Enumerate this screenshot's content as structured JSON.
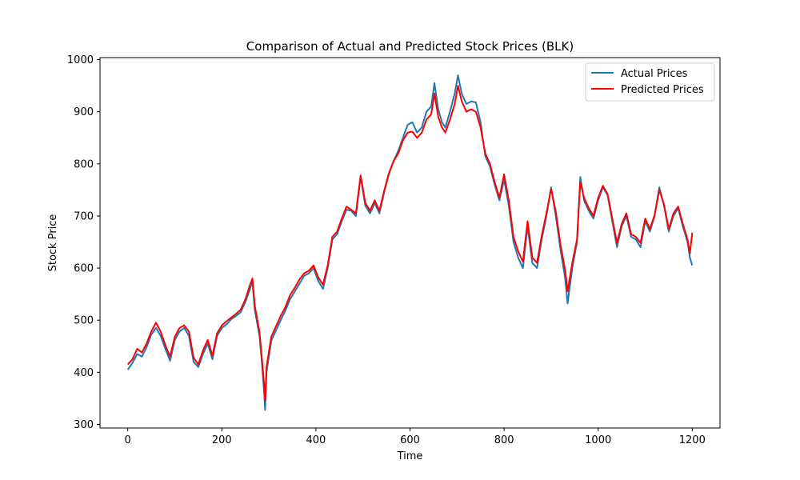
{
  "chart_data": {
    "type": "line",
    "title": "Comparison of Actual and Predicted Stock Prices (BLK)",
    "xlabel": "Time",
    "ylabel": "Stock Price",
    "xlim": [
      -59,
      1259
    ],
    "ylim": [
      293,
      1004
    ],
    "xticks": [
      0,
      200,
      400,
      600,
      800,
      1000,
      1200
    ],
    "yticks": [
      300,
      400,
      500,
      600,
      700,
      800,
      900,
      1000
    ],
    "grid": false,
    "legend_position": "top-right",
    "series": [
      {
        "name": "Actual Prices",
        "color": "#1f77b4",
        "points": [
          [
            0,
            405
          ],
          [
            10,
            418
          ],
          [
            20,
            435
          ],
          [
            30,
            430
          ],
          [
            40,
            448
          ],
          [
            50,
            472
          ],
          [
            60,
            485
          ],
          [
            70,
            470
          ],
          [
            80,
            445
          ],
          [
            90,
            422
          ],
          [
            100,
            462
          ],
          [
            110,
            478
          ],
          [
            120,
            485
          ],
          [
            130,
            470
          ],
          [
            140,
            420
          ],
          [
            150,
            410
          ],
          [
            160,
            435
          ],
          [
            170,
            455
          ],
          [
            180,
            425
          ],
          [
            190,
            470
          ],
          [
            200,
            485
          ],
          [
            210,
            492
          ],
          [
            220,
            502
          ],
          [
            230,
            508
          ],
          [
            240,
            515
          ],
          [
            250,
            535
          ],
          [
            260,
            560
          ],
          [
            265,
            575
          ],
          [
            270,
            520
          ],
          [
            280,
            470
          ],
          [
            285,
            420
          ],
          [
            290,
            360
          ],
          [
            292,
            328
          ],
          [
            295,
            400
          ],
          [
            305,
            460
          ],
          [
            315,
            480
          ],
          [
            325,
            500
          ],
          [
            335,
            518
          ],
          [
            345,
            540
          ],
          [
            355,
            555
          ],
          [
            365,
            570
          ],
          [
            375,
            585
          ],
          [
            385,
            590
          ],
          [
            395,
            600
          ],
          [
            405,
            575
          ],
          [
            415,
            560
          ],
          [
            425,
            600
          ],
          [
            435,
            655
          ],
          [
            445,
            665
          ],
          [
            455,
            690
          ],
          [
            465,
            712
          ],
          [
            475,
            710
          ],
          [
            485,
            700
          ],
          [
            495,
            775
          ],
          [
            505,
            720
          ],
          [
            515,
            705
          ],
          [
            525,
            725
          ],
          [
            535,
            705
          ],
          [
            545,
            745
          ],
          [
            555,
            780
          ],
          [
            565,
            805
          ],
          [
            575,
            825
          ],
          [
            585,
            850
          ],
          [
            595,
            875
          ],
          [
            605,
            880
          ],
          [
            615,
            860
          ],
          [
            625,
            870
          ],
          [
            635,
            900
          ],
          [
            645,
            910
          ],
          [
            652,
            955
          ],
          [
            660,
            905
          ],
          [
            668,
            880
          ],
          [
            675,
            870
          ],
          [
            685,
            900
          ],
          [
            695,
            935
          ],
          [
            702,
            970
          ],
          [
            710,
            935
          ],
          [
            720,
            915
          ],
          [
            730,
            920
          ],
          [
            740,
            918
          ],
          [
            750,
            880
          ],
          [
            760,
            815
          ],
          [
            770,
            795
          ],
          [
            780,
            760
          ],
          [
            790,
            730
          ],
          [
            800,
            770
          ],
          [
            810,
            720
          ],
          [
            820,
            650
          ],
          [
            830,
            620
          ],
          [
            840,
            600
          ],
          [
            850,
            680
          ],
          [
            860,
            610
          ],
          [
            870,
            600
          ],
          [
            880,
            655
          ],
          [
            890,
            700
          ],
          [
            900,
            755
          ],
          [
            910,
            700
          ],
          [
            920,
            635
          ],
          [
            930,
            580
          ],
          [
            935,
            532
          ],
          [
            945,
            600
          ],
          [
            955,
            650
          ],
          [
            962,
            775
          ],
          [
            970,
            730
          ],
          [
            980,
            710
          ],
          [
            990,
            695
          ],
          [
            1000,
            730
          ],
          [
            1010,
            755
          ],
          [
            1020,
            740
          ],
          [
            1030,
            690
          ],
          [
            1040,
            640
          ],
          [
            1050,
            680
          ],
          [
            1060,
            700
          ],
          [
            1070,
            660
          ],
          [
            1080,
            655
          ],
          [
            1090,
            640
          ],
          [
            1100,
            690
          ],
          [
            1110,
            670
          ],
          [
            1120,
            700
          ],
          [
            1130,
            755
          ],
          [
            1140,
            720
          ],
          [
            1150,
            670
          ],
          [
            1160,
            700
          ],
          [
            1170,
            715
          ],
          [
            1180,
            680
          ],
          [
            1190,
            650
          ],
          [
            1195,
            620
          ],
          [
            1200,
            605
          ]
        ]
      },
      {
        "name": "Predicted Prices",
        "color": "#ff0000",
        "points": [
          [
            0,
            415
          ],
          [
            10,
            425
          ],
          [
            20,
            445
          ],
          [
            30,
            438
          ],
          [
            40,
            455
          ],
          [
            50,
            478
          ],
          [
            60,
            495
          ],
          [
            70,
            478
          ],
          [
            80,
            452
          ],
          [
            90,
            430
          ],
          [
            100,
            468
          ],
          [
            110,
            485
          ],
          [
            120,
            490
          ],
          [
            130,
            478
          ],
          [
            140,
            428
          ],
          [
            150,
            415
          ],
          [
            160,
            442
          ],
          [
            170,
            462
          ],
          [
            180,
            432
          ],
          [
            190,
            475
          ],
          [
            200,
            490
          ],
          [
            210,
            498
          ],
          [
            220,
            505
          ],
          [
            230,
            512
          ],
          [
            240,
            520
          ],
          [
            250,
            540
          ],
          [
            260,
            568
          ],
          [
            265,
            580
          ],
          [
            270,
            528
          ],
          [
            280,
            478
          ],
          [
            285,
            428
          ],
          [
            290,
            375
          ],
          [
            292,
            345
          ],
          [
            295,
            410
          ],
          [
            305,
            468
          ],
          [
            315,
            488
          ],
          [
            325,
            508
          ],
          [
            335,
            525
          ],
          [
            345,
            548
          ],
          [
            355,
            562
          ],
          [
            365,
            578
          ],
          [
            375,
            590
          ],
          [
            385,
            595
          ],
          [
            395,
            605
          ],
          [
            405,
            582
          ],
          [
            415,
            568
          ],
          [
            425,
            605
          ],
          [
            435,
            660
          ],
          [
            445,
            670
          ],
          [
            455,
            695
          ],
          [
            465,
            718
          ],
          [
            475,
            712
          ],
          [
            485,
            705
          ],
          [
            495,
            778
          ],
          [
            505,
            725
          ],
          [
            515,
            710
          ],
          [
            525,
            730
          ],
          [
            535,
            710
          ],
          [
            545,
            748
          ],
          [
            555,
            782
          ],
          [
            565,
            805
          ],
          [
            575,
            820
          ],
          [
            585,
            845
          ],
          [
            595,
            860
          ],
          [
            605,
            862
          ],
          [
            615,
            850
          ],
          [
            625,
            860
          ],
          [
            635,
            885
          ],
          [
            645,
            895
          ],
          [
            652,
            935
          ],
          [
            660,
            890
          ],
          [
            668,
            870
          ],
          [
            675,
            860
          ],
          [
            685,
            885
          ],
          [
            695,
            915
          ],
          [
            702,
            950
          ],
          [
            710,
            920
          ],
          [
            720,
            900
          ],
          [
            730,
            905
          ],
          [
            740,
            900
          ],
          [
            750,
            870
          ],
          [
            760,
            820
          ],
          [
            770,
            800
          ],
          [
            780,
            765
          ],
          [
            790,
            735
          ],
          [
            800,
            780
          ],
          [
            810,
            730
          ],
          [
            820,
            660
          ],
          [
            830,
            632
          ],
          [
            840,
            612
          ],
          [
            850,
            690
          ],
          [
            860,
            620
          ],
          [
            870,
            610
          ],
          [
            880,
            662
          ],
          [
            890,
            705
          ],
          [
            900,
            752
          ],
          [
            910,
            708
          ],
          [
            920,
            645
          ],
          [
            930,
            595
          ],
          [
            935,
            555
          ],
          [
            945,
            610
          ],
          [
            955,
            655
          ],
          [
            962,
            765
          ],
          [
            970,
            735
          ],
          [
            980,
            715
          ],
          [
            990,
            700
          ],
          [
            1000,
            735
          ],
          [
            1010,
            758
          ],
          [
            1020,
            742
          ],
          [
            1030,
            695
          ],
          [
            1040,
            648
          ],
          [
            1050,
            685
          ],
          [
            1060,
            705
          ],
          [
            1070,
            665
          ],
          [
            1080,
            660
          ],
          [
            1090,
            648
          ],
          [
            1100,
            695
          ],
          [
            1110,
            675
          ],
          [
            1120,
            702
          ],
          [
            1130,
            750
          ],
          [
            1140,
            722
          ],
          [
            1150,
            675
          ],
          [
            1160,
            705
          ],
          [
            1170,
            718
          ],
          [
            1180,
            685
          ],
          [
            1190,
            655
          ],
          [
            1195,
            628
          ],
          [
            1200,
            668
          ]
        ]
      }
    ]
  }
}
